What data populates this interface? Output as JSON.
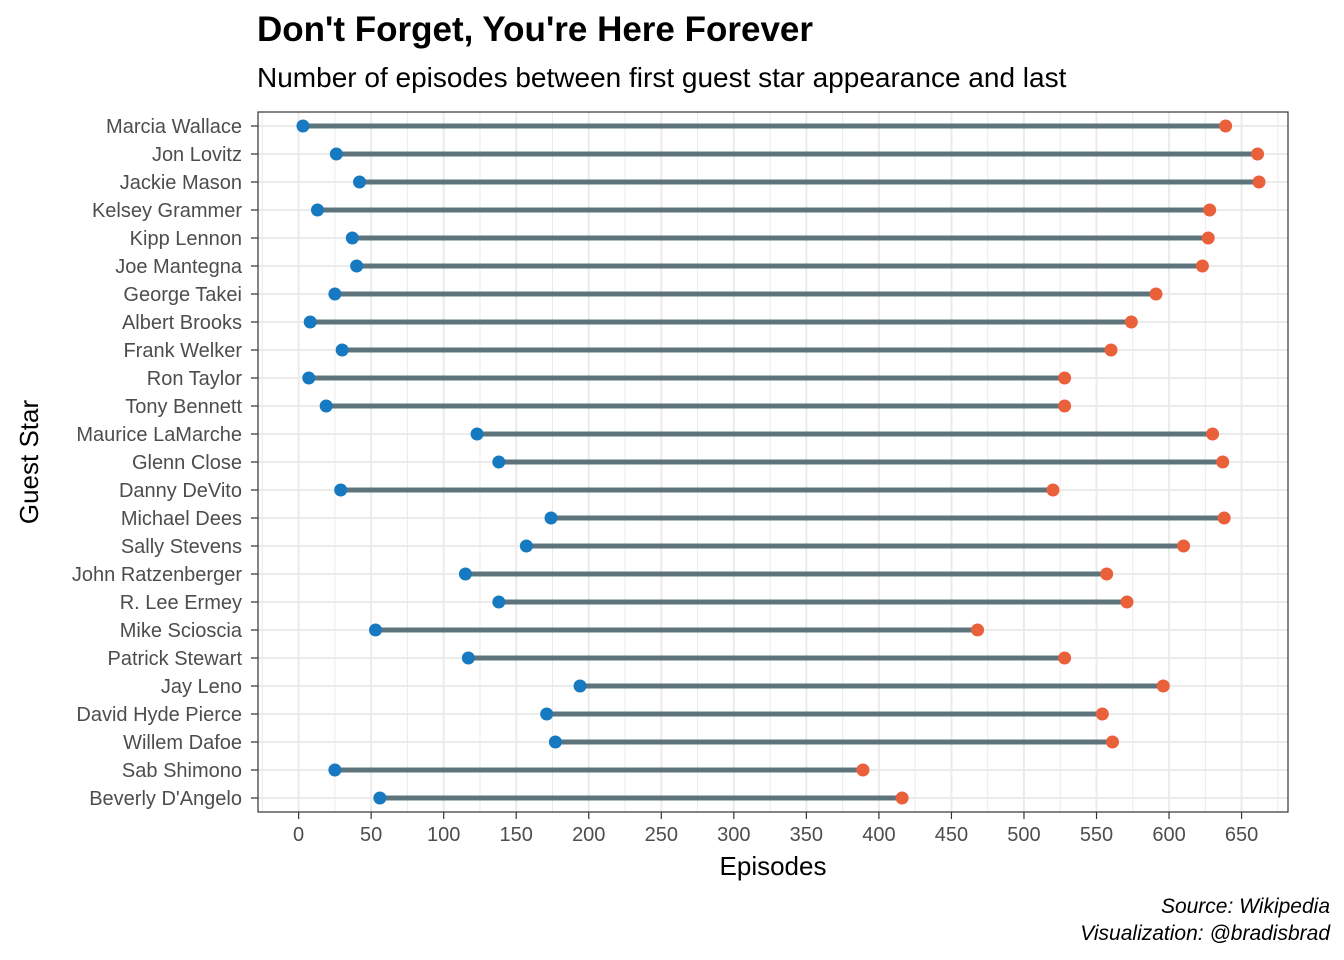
{
  "chart_data": {
    "type": "dumbbell",
    "title": "Don't Forget, You're Here Forever",
    "subtitle": "Number of episodes between first guest star appearance and last",
    "xlabel": "Episodes",
    "ylabel": "Guest Star",
    "xlim": [
      -28,
      682
    ],
    "x_ticks": [
      0,
      50,
      100,
      150,
      200,
      250,
      300,
      350,
      400,
      450,
      500,
      550,
      600,
      650
    ],
    "grid": true,
    "colors": {
      "segment": "#5e747c",
      "first": "#1779bf",
      "last": "#e9603a",
      "gridline": "#ebebeb",
      "border": "#333333"
    },
    "categories": [
      "Marcia Wallace",
      "Jon Lovitz",
      "Jackie Mason",
      "Kelsey Grammer",
      "Kipp Lennon",
      "Joe Mantegna",
      "George Takei",
      "Albert Brooks",
      "Frank Welker",
      "Ron Taylor",
      "Tony Bennett",
      "Maurice LaMarche",
      "Glenn Close",
      "Danny DeVito",
      "Michael Dees",
      "Sally Stevens",
      "John Ratzenberger",
      "R. Lee Ermey",
      "Mike Scioscia",
      "Patrick Stewart",
      "Jay Leno",
      "David Hyde Pierce",
      "Willem Dafoe",
      "Sab Shimono",
      "Beverly D'Angelo"
    ],
    "series": [
      {
        "name": "First appearance",
        "values": [
          3,
          26,
          42,
          13,
          37,
          40,
          25,
          8,
          30,
          7,
          19,
          123,
          138,
          29,
          174,
          157,
          115,
          138,
          53,
          117,
          194,
          171,
          177,
          25,
          56
        ]
      },
      {
        "name": "Last appearance",
        "values": [
          639,
          661,
          662,
          628,
          627,
          623,
          591,
          574,
          560,
          528,
          528,
          630,
          637,
          520,
          638,
          610,
          557,
          571,
          468,
          528,
          596,
          554,
          561,
          389,
          416
        ]
      }
    ]
  },
  "caption": {
    "source": "Source: Wikipedia",
    "credit": "Visualization: @bradisbrad"
  }
}
